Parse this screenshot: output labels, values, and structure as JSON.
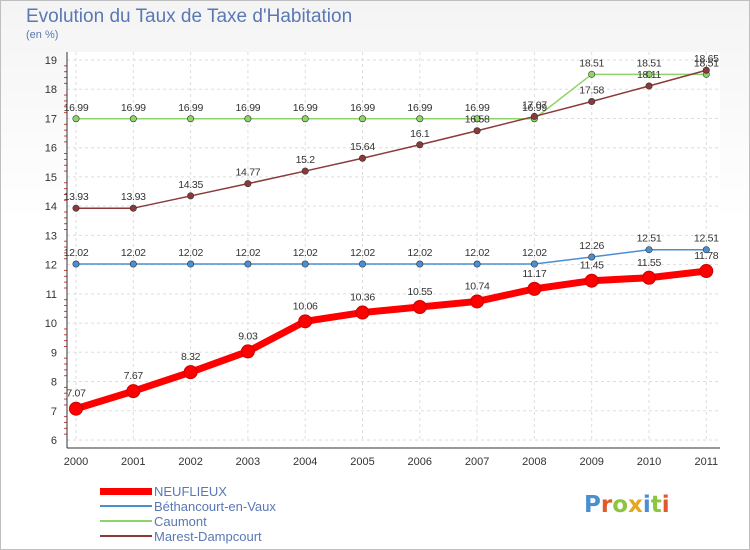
{
  "title": "Evolution du Taux de Taxe d'Habitation",
  "subtitle": "(en %)",
  "logo": {
    "text": "Proxiti",
    "colors": [
      "#4a8fd1",
      "#e05a2b",
      "#8cc63f",
      "#e7a620",
      "#4a8fd1",
      "#8cc63f",
      "#e05a2b"
    ]
  },
  "chart_data": {
    "type": "line",
    "x": [
      "2000",
      "2001",
      "2002",
      "2003",
      "2004",
      "2005",
      "2006",
      "2007",
      "2008",
      "2009",
      "2010",
      "2011"
    ],
    "ylim": [
      6,
      19
    ],
    "yticks": [
      "6",
      "7",
      "8",
      "9",
      "10",
      "11",
      "12",
      "13",
      "14",
      "15",
      "16",
      "17",
      "18",
      "19"
    ],
    "grid": true,
    "legend_position": "bottom-left",
    "series": [
      {
        "name": "NEUFLIEUX",
        "color": "#ff0000",
        "values": [
          7.07,
          7.67,
          8.32,
          9.03,
          10.06,
          10.36,
          10.55,
          10.74,
          11.17,
          11.45,
          11.55,
          11.78
        ],
        "labels": [
          "7.07",
          "7.67",
          "8.32",
          "9.03",
          "10.06",
          "10.36",
          "10.55",
          "10.74",
          "11.17",
          "11.45",
          "11.55",
          "11.78"
        ]
      },
      {
        "name": "Béthancourt-en-Vaux",
        "color": "#4a8fd1",
        "values": [
          12.02,
          12.02,
          12.02,
          12.02,
          12.02,
          12.02,
          12.02,
          12.02,
          12.02,
          12.26,
          12.51,
          12.51
        ],
        "labels": [
          "12.02",
          "12.02",
          "12.02",
          "12.02",
          "12.02",
          "12.02",
          "12.02",
          "12.02",
          "12.02",
          "12.26",
          "12.51",
          "12.51"
        ]
      },
      {
        "name": "Caumont",
        "color": "#8fd36a",
        "values": [
          16.99,
          16.99,
          16.99,
          16.99,
          16.99,
          16.99,
          16.99,
          16.99,
          16.99,
          18.51,
          18.51,
          18.51
        ],
        "labels": [
          "16.99",
          "16.99",
          "16.99",
          "16.99",
          "16.99",
          "16.99",
          "16.99",
          "16.99",
          "16.99",
          "18.51",
          "18.51",
          "18.51"
        ]
      },
      {
        "name": "Marest-Dampcourt",
        "color": "#8b3a3a",
        "values": [
          13.93,
          13.93,
          14.35,
          14.77,
          15.2,
          15.64,
          16.1,
          16.58,
          17.07,
          17.58,
          18.11,
          18.65
        ],
        "labels": [
          "13.93",
          "13.93",
          "14.35",
          "14.77",
          "15.2",
          "15.64",
          "16.1",
          "16.58",
          "17.07",
          "17.58",
          "18.11",
          "18.65"
        ]
      }
    ]
  }
}
